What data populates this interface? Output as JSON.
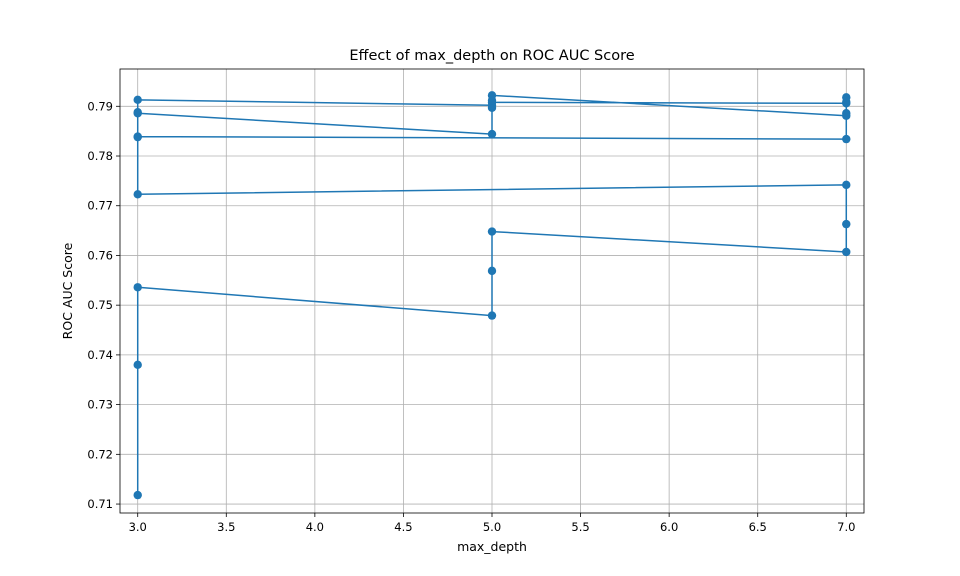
{
  "chart_data": {
    "type": "line",
    "title": "Effect of max_depth on ROC AUC Score",
    "xlabel": "max_depth",
    "ylabel": "ROC AUC Score",
    "xlim": [
      2.9,
      7.1
    ],
    "ylim": [
      0.7082,
      0.7975
    ],
    "xticks": [
      3.0,
      3.5,
      4.0,
      4.5,
      5.0,
      5.5,
      6.0,
      6.5,
      7.0
    ],
    "xtick_labels": [
      "3.0",
      "3.5",
      "4.0",
      "4.5",
      "5.0",
      "5.5",
      "6.0",
      "6.5",
      "7.0"
    ],
    "yticks": [
      0.71,
      0.72,
      0.73,
      0.74,
      0.75,
      0.76,
      0.77,
      0.78,
      0.79
    ],
    "ytick_labels": [
      "0.71",
      "0.72",
      "0.73",
      "0.74",
      "0.75",
      "0.76",
      "0.77",
      "0.78",
      "0.79"
    ],
    "grid": true,
    "color": "#1f77b4",
    "marker": "circle",
    "series": [
      {
        "x": [
          3,
          3,
          3,
          5,
          5,
          5,
          7,
          7,
          7,
          3,
          3,
          3,
          5,
          5,
          5,
          7,
          7,
          7,
          3,
          3,
          3,
          5,
          5,
          5,
          7,
          7,
          7
        ],
        "y": [
          0.7118,
          0.738,
          0.7536,
          0.7479,
          0.7569,
          0.7648,
          0.7607,
          0.7663,
          0.7742,
          0.7723,
          0.7838,
          0.7886,
          0.7844,
          0.7897,
          0.7908,
          0.7906,
          0.7886,
          0.7834,
          0.7839,
          0.7888,
          0.7913,
          0.7902,
          0.7912,
          0.7922,
          0.7881,
          0.7909,
          0.7918
        ]
      }
    ]
  }
}
